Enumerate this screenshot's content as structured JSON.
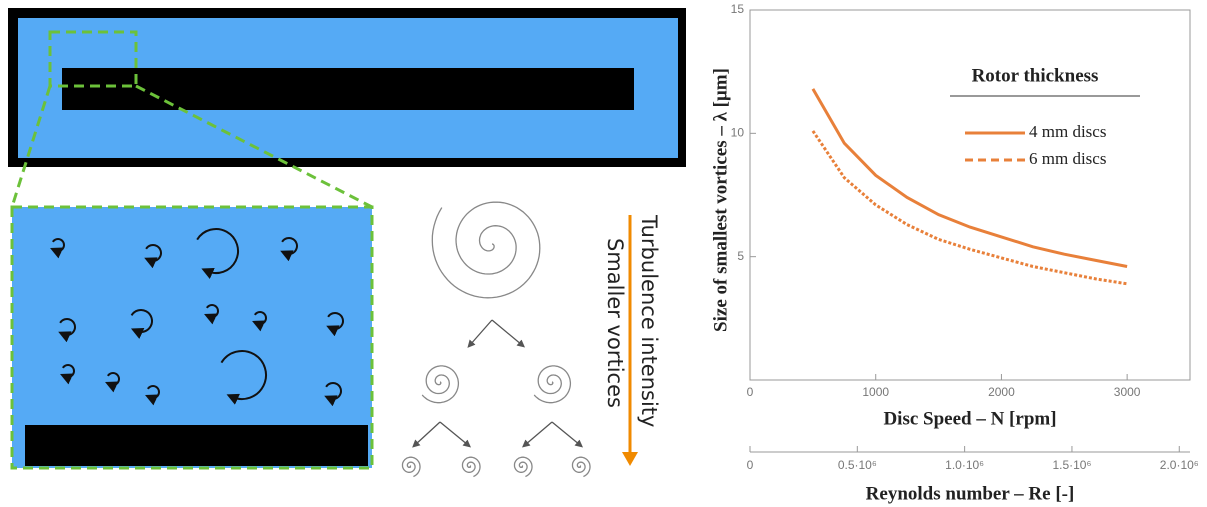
{
  "chart_data": {
    "type": "line",
    "ylabel": "Size of smallest vortices – λ [μm]",
    "xlabel": "Disc Speed – N [rpm]",
    "x2label": "Reynolds number – Re [-]",
    "legend_title": "Rotor thickness",
    "legend": "upper right",
    "x": [
      500,
      750,
      1000,
      1250,
      1500,
      1750,
      2000,
      2250,
      2500,
      2750,
      3000
    ],
    "series": [
      {
        "name": "4 mm discs",
        "color": "#e8803a",
        "style": "solid",
        "values": [
          11.8,
          9.6,
          8.3,
          7.4,
          6.7,
          6.2,
          5.8,
          5.4,
          5.1,
          4.85,
          4.6
        ]
      },
      {
        "name": "6 mm discs",
        "color": "#e8803a",
        "style": "dashed",
        "values": [
          10.1,
          8.2,
          7.1,
          6.3,
          5.7,
          5.3,
          4.95,
          4.6,
          4.35,
          4.1,
          3.9
        ]
      }
    ],
    "xlim": [
      0,
      3500
    ],
    "xticks": [
      0,
      1000,
      2000,
      3000
    ],
    "ylim": [
      0,
      15
    ],
    "yticks": [
      5,
      10,
      15
    ],
    "x2lim": [
      0,
      2050000
    ],
    "x2ticks": [
      0,
      {
        "value": 500000,
        "label": "0.5·10⁶"
      },
      {
        "value": 1000000,
        "label": "1.0·10⁶"
      },
      {
        "value": 1500000,
        "label": "1.5·10⁶"
      },
      {
        "value": 2000000,
        "label": "2.0·10⁶"
      }
    ]
  },
  "diagram": {
    "arrow_labels": [
      "Turbulence intensity",
      "Smaller vortices"
    ]
  }
}
